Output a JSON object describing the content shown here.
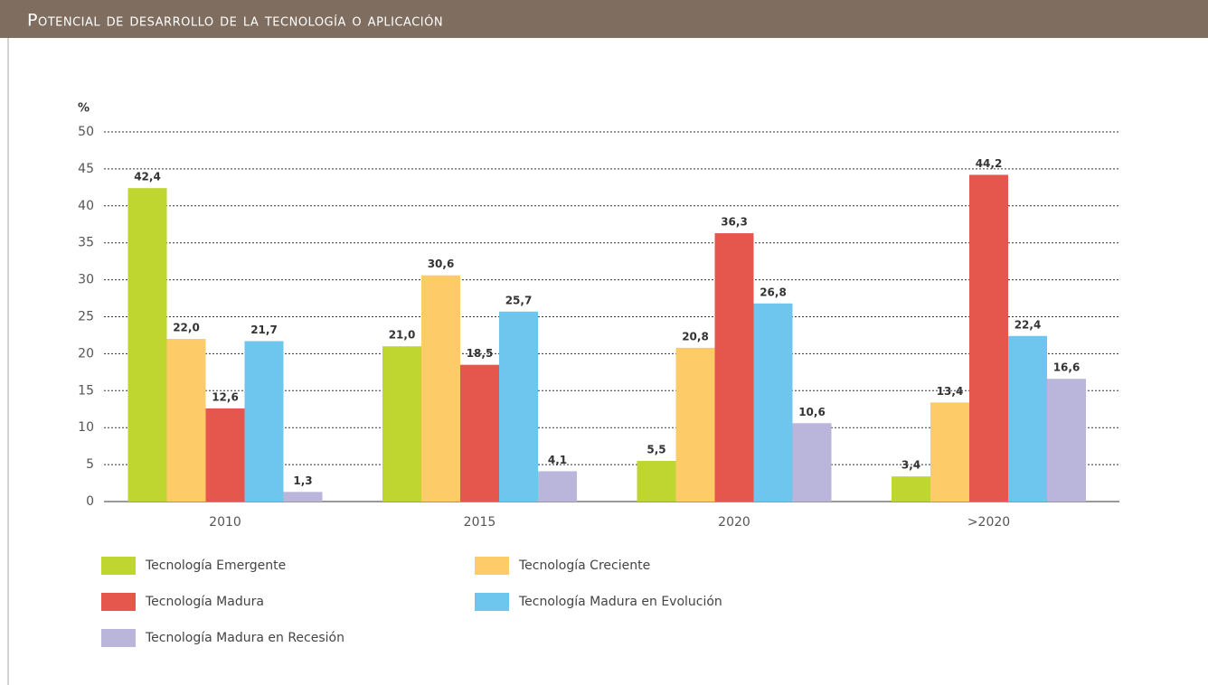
{
  "chart_data": {
    "type": "bar",
    "title": "Potencial de desarrollo de la tecnología o aplicación",
    "y_label": "%",
    "categories": [
      "2010",
      "2015",
      "2020",
      ">2020"
    ],
    "ylim": [
      0,
      50
    ],
    "yticks": [
      0,
      5,
      10,
      15,
      20,
      25,
      30,
      35,
      40,
      45,
      50
    ],
    "grid": true,
    "series": [
      {
        "name": "Tecnología Emergente",
        "color": "#bed62f",
        "values": [
          42.4,
          21.0,
          5.5,
          3.4
        ],
        "value_labels": [
          "42,4",
          "21,0",
          "5,5",
          "3,4"
        ]
      },
      {
        "name": "Tecnología Creciente",
        "color": "#fecb69",
        "values": [
          22.0,
          30.6,
          20.8,
          13.4
        ],
        "value_labels": [
          "22,0",
          "30,6",
          "20,8",
          "13,4"
        ]
      },
      {
        "name": "Tecnología Madura",
        "color": "#e5574d",
        "values": [
          12.6,
          18.5,
          36.3,
          44.2
        ],
        "value_labels": [
          "12,6",
          "18,5",
          "36,3",
          "44,2"
        ]
      },
      {
        "name": "Tecnología Madura en Evolución",
        "color": "#6ec6ee",
        "values": [
          21.7,
          25.7,
          26.8,
          22.4
        ],
        "value_labels": [
          "21,7",
          "25,7",
          "26,8",
          "22,4"
        ]
      },
      {
        "name": "Tecnología Madura en Recesión",
        "color": "#b9b5db",
        "values": [
          1.3,
          4.1,
          10.6,
          16.6
        ],
        "value_labels": [
          "1,3",
          "4,1",
          "10,6",
          "16,6"
        ]
      }
    ]
  }
}
